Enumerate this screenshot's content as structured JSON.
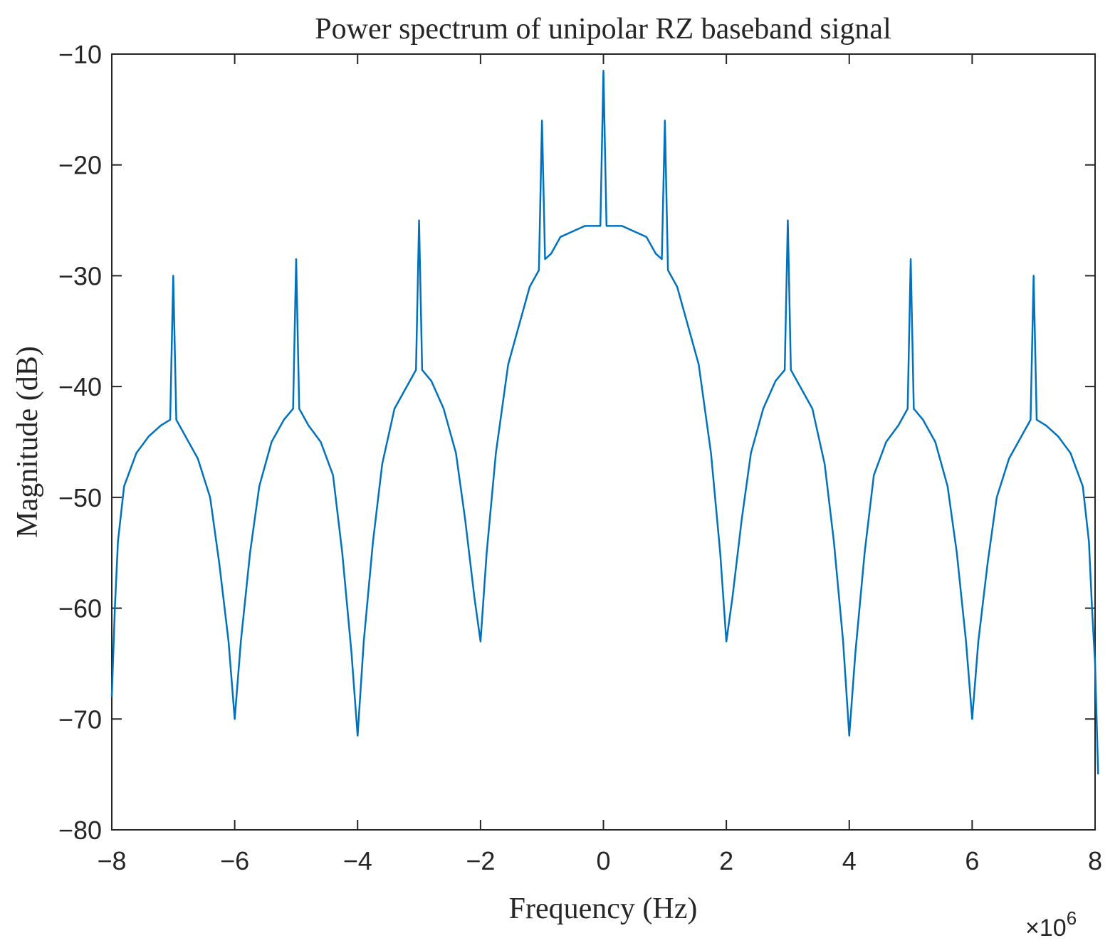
{
  "chart_data": {
    "type": "line",
    "title": "Power spectrum of unipolar RZ baseband signal",
    "xlabel": "Frequency (Hz)",
    "ylabel": "Magnitude (dB)",
    "x_exponent_prefix": "×10",
    "x_exponent_power": "6",
    "xlim": [
      -8,
      8
    ],
    "ylim": [
      -80,
      -10
    ],
    "x_scale_note": "x values in units of 1e6 Hz",
    "xticks": [
      -8,
      -6,
      -4,
      -2,
      0,
      2,
      4,
      6,
      8
    ],
    "xtick_labels": [
      "−8",
      "−6",
      "−4",
      "−2",
      "0",
      "2",
      "4",
      "6",
      "8"
    ],
    "yticks": [
      -10,
      -20,
      -30,
      -40,
      -50,
      -60,
      -70,
      -80
    ],
    "ytick_labels": [
      "−10",
      "−20",
      "−30",
      "−40",
      "−50",
      "−60",
      "−70",
      "−80"
    ],
    "grid": false,
    "line_color": "#0072BD",
    "series": [
      {
        "values_x": [
          -8.0,
          -7.95,
          -7.9,
          -7.8,
          -7.6,
          -7.4,
          -7.2,
          -7.05,
          -7.0,
          -6.95,
          -6.8,
          -6.6,
          -6.4,
          -6.25,
          -6.1,
          -6.0,
          -5.9,
          -5.75,
          -5.6,
          -5.4,
          -5.2,
          -5.05,
          -5.0,
          -4.95,
          -4.8,
          -4.6,
          -4.4,
          -4.25,
          -4.1,
          -4.0,
          -3.9,
          -3.75,
          -3.6,
          -3.4,
          -3.2,
          -3.05,
          -3.0,
          -2.95,
          -2.8,
          -2.6,
          -2.4,
          -2.25,
          -2.1,
          -2.0,
          -1.9,
          -1.75,
          -1.55,
          -1.35,
          -1.2,
          -1.05,
          -1.0,
          -0.95,
          -0.85,
          -0.7,
          -0.5,
          -0.3,
          -0.05,
          0.0,
          0.05,
          0.3,
          0.5,
          0.7,
          0.85,
          0.95,
          1.0,
          1.05,
          1.2,
          1.35,
          1.55,
          1.75,
          1.9,
          2.0,
          2.1,
          2.25,
          2.4,
          2.6,
          2.8,
          2.95,
          3.0,
          3.05,
          3.2,
          3.4,
          3.6,
          3.75,
          3.9,
          4.0,
          4.1,
          4.25,
          4.4,
          4.6,
          4.8,
          4.95,
          5.0,
          5.05,
          5.2,
          5.4,
          5.6,
          5.75,
          5.9,
          6.0,
          6.1,
          6.25,
          6.4,
          6.6,
          6.8,
          6.95,
          7.0,
          7.05,
          7.2,
          7.4,
          7.6,
          7.8,
          7.9,
          7.95,
          8.0,
          8.05
        ],
        "values_y": [
          -68,
          -60,
          -54,
          -49,
          -46,
          -44.5,
          -43.5,
          -43,
          -30,
          -43,
          -44.5,
          -46.5,
          -50,
          -56,
          -63,
          -70,
          -63,
          -55,
          -49,
          -45,
          -43,
          -42,
          -28.5,
          -42,
          -43.5,
          -45,
          -48,
          -55,
          -64,
          -71.5,
          -63,
          -54,
          -47,
          -42,
          -40,
          -38.5,
          -25,
          -38.5,
          -39.5,
          -42,
          -46,
          -52,
          -59,
          -63,
          -55,
          -46,
          -38,
          -34,
          -31,
          -29.5,
          -16,
          -28.5,
          -28,
          -26.5,
          -26,
          -25.5,
          -25.5,
          -11.5,
          -25.5,
          -25.5,
          -26,
          -26.5,
          -28,
          -28.5,
          -16,
          -29.5,
          -31,
          -34,
          -38,
          -46,
          -55,
          -63,
          -59,
          -52,
          -46,
          -42,
          -39.5,
          -38.5,
          -25,
          -38.5,
          -40,
          -42,
          -47,
          -54,
          -63,
          -71.5,
          -64,
          -55,
          -48,
          -45,
          -43.5,
          -42,
          -28.5,
          -42,
          -43,
          -45,
          -49,
          -55,
          -63,
          -70,
          -63,
          -56,
          -50,
          -46.5,
          -44.5,
          -43,
          -30,
          -43,
          -43.5,
          -44.5,
          -46,
          -49,
          -54,
          -60,
          -65,
          -75
        ]
      }
    ]
  }
}
